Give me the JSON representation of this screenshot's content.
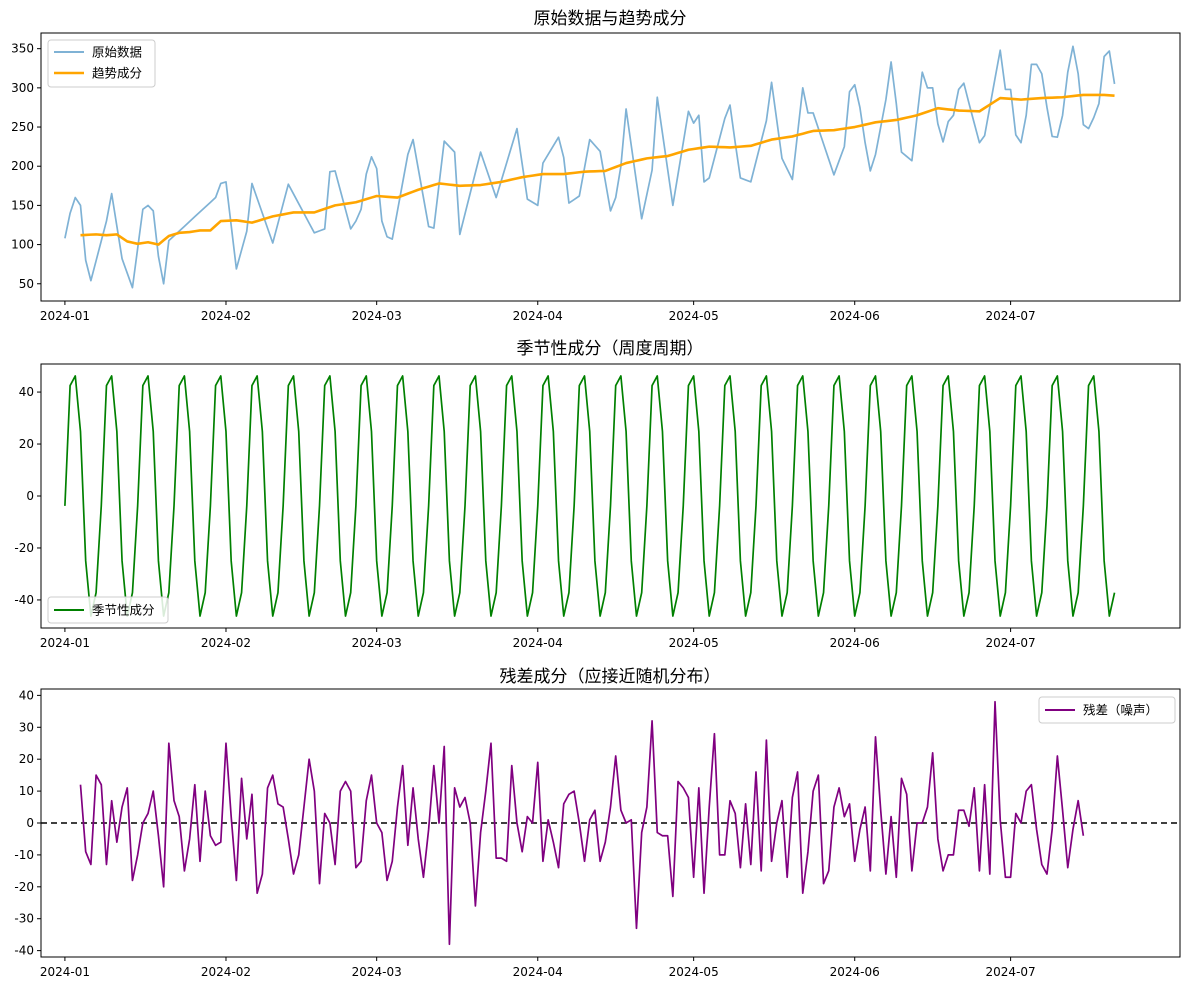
{
  "chart_data": [
    {
      "type": "line",
      "title": "原始数据与趋势成分",
      "xlabel": "",
      "ylabel": "",
      "x_start": "2024-01-01",
      "x_end": "2024-07-18",
      "xlim_days": [
        -4.6,
        214.6
      ],
      "ylim": [
        28,
        370
      ],
      "yticks": [
        50,
        100,
        150,
        200,
        250,
        300,
        350
      ],
      "xticks": [
        {
          "label": "2024-01",
          "day": 0
        },
        {
          "label": "2024-02",
          "day": 31
        },
        {
          "label": "2024-03",
          "day": 60
        },
        {
          "label": "2024-04",
          "day": 91
        },
        {
          "label": "2024-05",
          "day": 121
        },
        {
          "label": "2024-06",
          "day": 152
        },
        {
          "label": "2024-07",
          "day": 182
        }
      ],
      "legend_position": "top-left",
      "series": [
        {
          "name": "原始数据",
          "color": "#7fb2d5",
          "kind": "raw",
          "anchors": [
            [
              0,
              108
            ],
            [
              1,
              140
            ],
            [
              2,
              160
            ],
            [
              3,
              150
            ],
            [
              4,
              80
            ],
            [
              5,
              54
            ],
            [
              8,
              130
            ],
            [
              9,
              165
            ],
            [
              11,
              82
            ],
            [
              13,
              45
            ],
            [
              15,
              145
            ],
            [
              16,
              150
            ],
            [
              17,
              143
            ],
            [
              18,
              85
            ],
            [
              19,
              50
            ],
            [
              20,
              105
            ],
            [
              29,
              160
            ],
            [
              30,
              178
            ],
            [
              31,
              180
            ],
            [
              33,
              69
            ],
            [
              35,
              117
            ],
            [
              36,
              178
            ],
            [
              40,
              102
            ],
            [
              43,
              177
            ],
            [
              48,
              115
            ],
            [
              50,
              120
            ],
            [
              51,
              193
            ],
            [
              52,
              194
            ],
            [
              55,
              120
            ],
            [
              56,
              130
            ],
            [
              57,
              145
            ],
            [
              58,
              190
            ],
            [
              59,
              212
            ],
            [
              60,
              197
            ],
            [
              61,
              130
            ],
            [
              62,
              110
            ],
            [
              63,
              107
            ],
            [
              66,
              215
            ],
            [
              67,
              234
            ],
            [
              70,
              123
            ],
            [
              71,
              121
            ],
            [
              73,
              232
            ],
            [
              75,
              218
            ],
            [
              76,
              113
            ],
            [
              80,
              218
            ],
            [
              83,
              160
            ],
            [
              87,
              248
            ],
            [
              89,
              158
            ],
            [
              91,
              150
            ],
            [
              92,
              204
            ],
            [
              95,
              237
            ],
            [
              96,
              211
            ],
            [
              97,
              153
            ],
            [
              99,
              162
            ],
            [
              100,
              198
            ],
            [
              101,
              234
            ],
            [
              103,
              219
            ],
            [
              105,
              143
            ],
            [
              106,
              160
            ],
            [
              107,
              200
            ],
            [
              108,
              273
            ],
            [
              111,
              133
            ],
            [
              113,
              195
            ],
            [
              114,
              288
            ],
            [
              117,
              150
            ],
            [
              120,
              270
            ],
            [
              121,
              255
            ],
            [
              122,
              265
            ],
            [
              123,
              180
            ],
            [
              124,
              185
            ],
            [
              127,
              261
            ],
            [
              128,
              278
            ],
            [
              129,
              230
            ],
            [
              130,
              185
            ],
            [
              132,
              180
            ],
            [
              135,
              258
            ],
            [
              136,
              307
            ],
            [
              138,
              210
            ],
            [
              140,
              183
            ],
            [
              142,
              300
            ],
            [
              143,
              268
            ],
            [
              144,
              268
            ],
            [
              148,
              189
            ],
            [
              150,
              225
            ],
            [
              151,
              295
            ],
            [
              152,
              304
            ],
            [
              153,
              275
            ],
            [
              154,
              230
            ],
            [
              155,
              194
            ],
            [
              156,
              215
            ],
            [
              158,
              285
            ],
            [
              159,
              333
            ],
            [
              160,
              280
            ],
            [
              161,
              218
            ],
            [
              163,
              207
            ],
            [
              165,
              320
            ],
            [
              166,
              300
            ],
            [
              167,
              300
            ],
            [
              168,
              254
            ],
            [
              169,
              231
            ],
            [
              170,
              257
            ],
            [
              171,
              265
            ],
            [
              172,
              298
            ],
            [
              173,
              306
            ],
            [
              174,
              280
            ],
            [
              175,
              255
            ],
            [
              176,
              230
            ],
            [
              177,
              239
            ],
            [
              179,
              312
            ],
            [
              180,
              348
            ],
            [
              181,
              298
            ],
            [
              182,
              298
            ],
            [
              183,
              240
            ],
            [
              184,
              230
            ],
            [
              185,
              265
            ],
            [
              186,
              330
            ],
            [
              187,
              330
            ],
            [
              188,
              318
            ],
            [
              189,
              275
            ],
            [
              190,
              238
            ],
            [
              191,
              237
            ],
            [
              192,
              265
            ],
            [
              193,
              320
            ],
            [
              194,
              353
            ],
            [
              195,
              318
            ],
            [
              196,
              253
            ],
            [
              197,
              248
            ],
            [
              198,
              262
            ],
            [
              199,
              280
            ],
            [
              200,
              340
            ],
            [
              201,
              347
            ],
            [
              202,
              305
            ]
          ]
        },
        {
          "name": "趋势成分",
          "color": "#ffa500",
          "kind": "trend",
          "anchors": [
            [
              3,
              112
            ],
            [
              6,
              113
            ],
            [
              8,
              112
            ],
            [
              10,
              113
            ],
            [
              12,
              104
            ],
            [
              14,
              101
            ],
            [
              16,
              103
            ],
            [
              18,
              100
            ],
            [
              20,
              111
            ],
            [
              22,
              115
            ],
            [
              24,
              116
            ],
            [
              26,
              118
            ],
            [
              28,
              118
            ],
            [
              30,
              130
            ],
            [
              33,
              131
            ],
            [
              36,
              128
            ],
            [
              40,
              136
            ],
            [
              44,
              141
            ],
            [
              48,
              141
            ],
            [
              52,
              150
            ],
            [
              56,
              154
            ],
            [
              60,
              162
            ],
            [
              64,
              160
            ],
            [
              68,
              170
            ],
            [
              72,
              178
            ],
            [
              76,
              175
            ],
            [
              80,
              176
            ],
            [
              84,
              180
            ],
            [
              88,
              186
            ],
            [
              92,
              190
            ],
            [
              96,
              190
            ],
            [
              100,
              193
            ],
            [
              104,
              194
            ],
            [
              108,
              204
            ],
            [
              112,
              210
            ],
            [
              116,
              213
            ],
            [
              120,
              221
            ],
            [
              124,
              225
            ],
            [
              128,
              224
            ],
            [
              132,
              226
            ],
            [
              136,
              234
            ],
            [
              140,
              238
            ],
            [
              144,
              245
            ],
            [
              148,
              246
            ],
            [
              152,
              250
            ],
            [
              156,
              256
            ],
            [
              160,
              259
            ],
            [
              164,
              265
            ],
            [
              168,
              274
            ],
            [
              172,
              271
            ],
            [
              176,
              270
            ],
            [
              180,
              287
            ],
            [
              184,
              285
            ],
            [
              188,
              287
            ],
            [
              192,
              288
            ],
            [
              196,
              291
            ],
            [
              200,
              291
            ],
            [
              202,
              290
            ]
          ]
        }
      ]
    },
    {
      "type": "line",
      "title": "季节性成分（周度周期）",
      "xlabel": "",
      "ylabel": "",
      "x_start": "2024-01-01",
      "x_end": "2024-07-18",
      "xlim_days": [
        -4.6,
        214.6
      ],
      "ylim": [
        -50.8,
        50.8
      ],
      "yticks": [
        -40,
        -20,
        0,
        20,
        40
      ],
      "xticks": [
        {
          "label": "2024-01",
          "day": 0
        },
        {
          "label": "2024-02",
          "day": 31
        },
        {
          "label": "2024-03",
          "day": 60
        },
        {
          "label": "2024-04",
          "day": 91
        },
        {
          "label": "2024-05",
          "day": 121
        },
        {
          "label": "2024-06",
          "day": 152
        },
        {
          "label": "2024-07",
          "day": 182
        }
      ],
      "legend_position": "bottom-left",
      "weekly_pattern": [
        -3.8,
        42.5,
        46.2,
        24.8,
        -25.0,
        -46.2,
        -37.2
      ],
      "days": 203,
      "series": [
        {
          "name": "季节性成分",
          "color": "#008000"
        }
      ]
    },
    {
      "type": "line",
      "title": "残差成分（应接近随机分布）",
      "xlabel": "",
      "ylabel": "",
      "x_start": "2024-01-04",
      "x_end": "2024-07-15",
      "xlim_days": [
        -4.6,
        214.6
      ],
      "ylim": [
        -42,
        42
      ],
      "yticks": [
        -40,
        -30,
        -20,
        -10,
        0,
        10,
        20,
        30,
        40
      ],
      "xticks": [
        {
          "label": "2024-01",
          "day": 0
        },
        {
          "label": "2024-02",
          "day": 31
        },
        {
          "label": "2024-03",
          "day": 60
        },
        {
          "label": "2024-04",
          "day": 91
        },
        {
          "label": "2024-05",
          "day": 121
        },
        {
          "label": "2024-06",
          "day": 152
        },
        {
          "label": "2024-07",
          "day": 182
        }
      ],
      "reference_line": {
        "y": 0,
        "style": "dashed",
        "color": "#000000"
      },
      "legend_position": "top-right",
      "series": [
        {
          "name": "残差（噪声）",
          "color": "#800080",
          "x_start_day": 3,
          "values": [
            12,
            -9,
            -13,
            15,
            12,
            -13,
            7,
            -6,
            5,
            11,
            -18,
            -10,
            0,
            3,
            10,
            -4,
            -20,
            25,
            7,
            2,
            -15,
            -5,
            12,
            -12,
            10,
            -4,
            -7,
            -6,
            25,
            2,
            -18,
            14,
            -5,
            9,
            -22,
            -16,
            11,
            15,
            6,
            5,
            -5,
            -16,
            -10,
            5,
            20,
            10,
            -19,
            3,
            0,
            -13,
            10,
            13,
            10,
            -14,
            -12,
            7,
            15,
            0,
            -3,
            -18,
            -12,
            5,
            18,
            -7,
            11,
            -5,
            -17,
            -2,
            18,
            0,
            24,
            -38,
            11,
            5,
            8,
            0,
            -26,
            -3,
            10,
            25,
            -11,
            -11,
            -12,
            18,
            0,
            -9,
            2,
            0,
            19,
            -12,
            1,
            -6,
            -14,
            6,
            9,
            10,
            0,
            -12,
            1,
            4,
            -12,
            -6,
            5,
            21,
            4,
            0,
            1,
            -33,
            -3,
            5,
            32,
            -3,
            -4,
            -4,
            -23,
            13,
            11,
            8,
            -17,
            11,
            -22,
            5,
            28,
            -10,
            -10,
            7,
            3,
            -14,
            6,
            -13,
            16,
            -15,
            26,
            -12,
            0,
            7,
            -17,
            8,
            16,
            -22,
            -9,
            10,
            15,
            -19,
            -15,
            5,
            11,
            2,
            6,
            -12,
            -2,
            5,
            -15,
            27,
            4,
            -16,
            2,
            -17,
            14,
            9,
            -15,
            0,
            0,
            5,
            22,
            -5,
            -15,
            -10,
            -10,
            4,
            4,
            -1,
            11,
            -15,
            12,
            -16,
            38,
            1,
            -17,
            -17,
            3,
            0,
            10,
            12,
            -2,
            -13,
            -16,
            -2,
            21,
            4,
            -14,
            -2,
            7,
            -4
          ]
        }
      ]
    }
  ]
}
